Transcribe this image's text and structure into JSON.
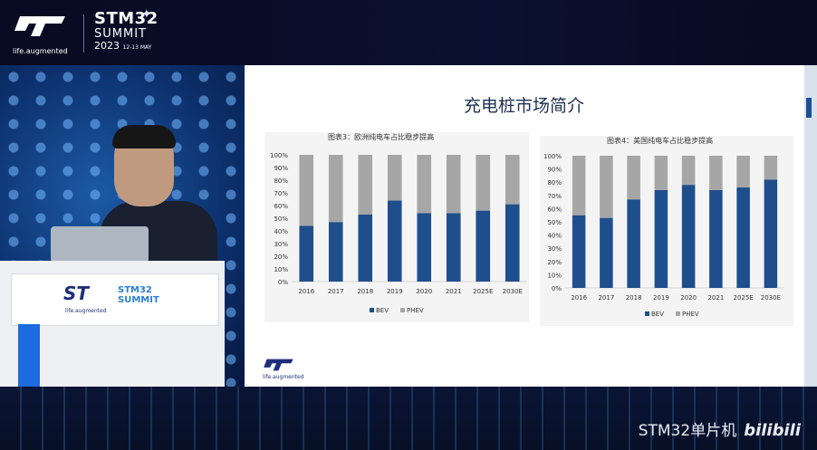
{
  "event": {
    "logo_tagline": "life.augmented",
    "summit_name": "STM32",
    "summit_word": "SUMMIT",
    "summit_year": "2023",
    "summit_date": "12-13 MAY"
  },
  "slide": {
    "title": "充电桩市场简介",
    "footer_logo_tagline": "life.augmented"
  },
  "chart_data": [
    {
      "type": "bar",
      "stacked": true,
      "percent": true,
      "title": "图表3：欧洲纯电车占比稳步提高",
      "categories": [
        "2016",
        "2017",
        "2018",
        "2019",
        "2020",
        "2021",
        "2025E",
        "2030E"
      ],
      "series": [
        {
          "name": "BEV",
          "color": "#1f4e8c",
          "values": [
            44,
            47,
            53,
            64,
            54,
            54,
            56,
            61
          ]
        },
        {
          "name": "PHEV",
          "color": "#a6a6a6",
          "values": [
            56,
            53,
            47,
            36,
            46,
            46,
            44,
            39
          ]
        }
      ],
      "yticks": [
        "0%",
        "10%",
        "20%",
        "30%",
        "40%",
        "50%",
        "60%",
        "70%",
        "80%",
        "90%",
        "100%"
      ],
      "ylim": [
        0,
        100
      ],
      "legend": "bottom-center"
    },
    {
      "type": "bar",
      "stacked": true,
      "percent": true,
      "title": "图表4：美国纯电车占比稳步提高",
      "categories": [
        "2016",
        "2017",
        "2018",
        "2019",
        "2020",
        "2021",
        "2025E",
        "2030E"
      ],
      "series": [
        {
          "name": "BEV",
          "color": "#1f4e8c",
          "values": [
            55,
            53,
            67,
            74,
            78,
            74,
            76,
            82
          ]
        },
        {
          "name": "PHEV",
          "color": "#a6a6a6",
          "values": [
            45,
            47,
            33,
            26,
            22,
            26,
            24,
            18
          ]
        }
      ],
      "yticks": [
        "0%",
        "10%",
        "20%",
        "30%",
        "40%",
        "50%",
        "60%",
        "70%",
        "80%",
        "90%",
        "100%"
      ],
      "ylim": [
        0,
        100
      ],
      "legend": "bottom-center"
    }
  ],
  "watermark": {
    "channel": "STM32单片机",
    "site": "bilibili"
  }
}
